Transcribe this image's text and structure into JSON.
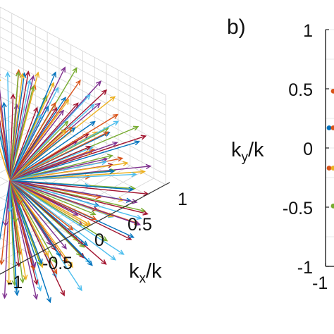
{
  "chart_data": [
    {
      "type": "scatter",
      "panel_label": "",
      "title": "",
      "xlabel": "k_x/k",
      "x_ticks": [
        "1",
        "0.5",
        "0",
        "-0.5",
        "-1"
      ],
      "grid": true,
      "series_colors": [
        "#0072BD",
        "#D95319",
        "#EDB120",
        "#7E2F8E",
        "#77AC30",
        "#4DBEEE",
        "#A2142F"
      ]
    },
    {
      "type": "scatter",
      "panel_label": "b)",
      "title": "",
      "ylabel": "k_y/k",
      "y_ticks": [
        "1",
        "0.5",
        "0",
        "-0.5",
        "-1"
      ],
      "x_ticks": [
        "-1"
      ],
      "ylim": [
        -1,
        1
      ],
      "grid": true,
      "points": [
        {
          "y": 0.48,
          "color": "#D95319"
        },
        {
          "y": 0.17,
          "color": "#0072BD"
        },
        {
          "y": 0.17,
          "color": "#D95319"
        },
        {
          "y": -0.17,
          "color": "#D95319"
        },
        {
          "y": -0.17,
          "color": "#EDB120"
        },
        {
          "y": -0.49,
          "color": "#77AC30"
        }
      ]
    }
  ]
}
